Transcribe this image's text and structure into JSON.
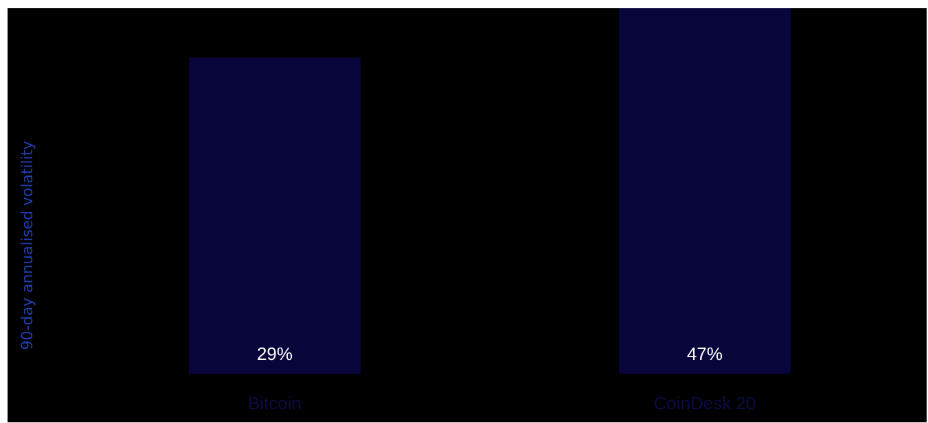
{
  "chart_data": {
    "type": "bar",
    "categories": [
      "Bitcoin",
      "CoinDesk 20"
    ],
    "values": [
      29,
      47
    ],
    "value_labels": [
      "29%",
      "47%"
    ],
    "title": "",
    "xlabel": "",
    "ylabel": "90-day annualised volatility",
    "ylim": [
      0,
      50
    ],
    "grid": false,
    "colors": {
      "background": "#000000",
      "bar": "#07053a",
      "bar_label": "#ffffff",
      "category_label": "#0a0c44",
      "axis_label": "#1f3fb0"
    }
  }
}
